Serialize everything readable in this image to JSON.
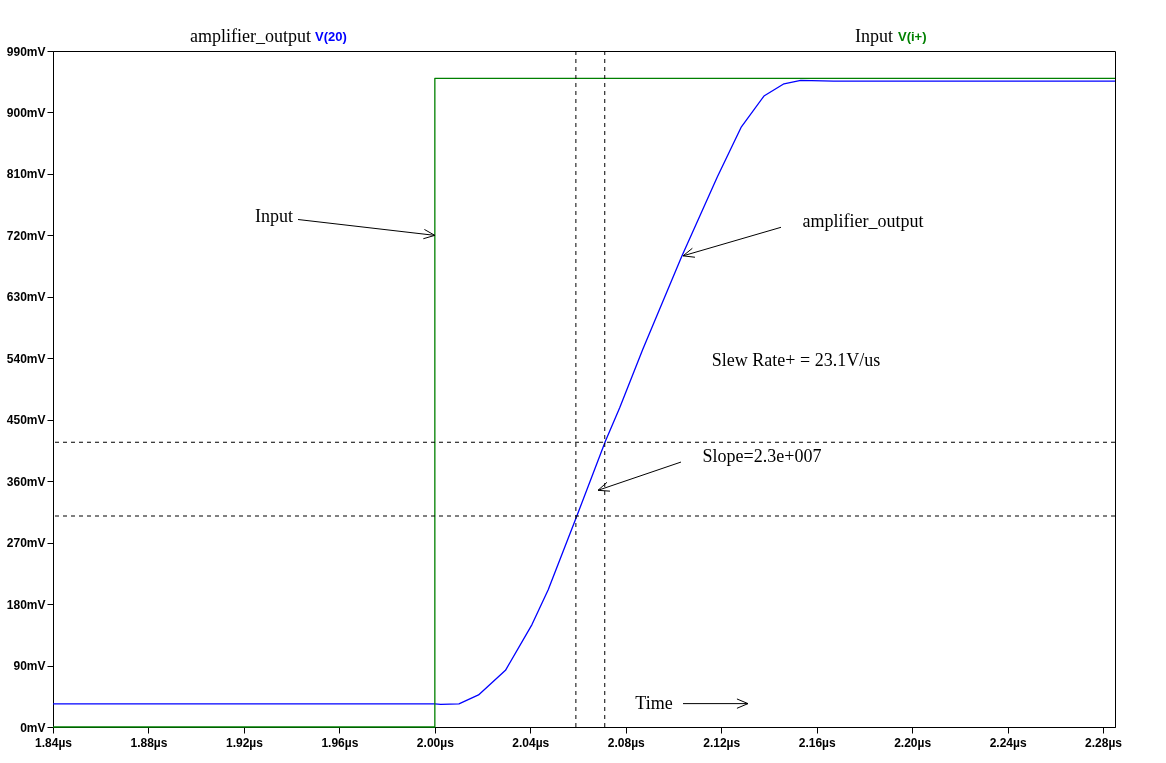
{
  "chart_data": {
    "type": "line",
    "xlim": [
      1.84,
      2.285
    ],
    "ylim": [
      0,
      990
    ],
    "xticks": [
      {
        "value": 1.84,
        "label": "1.84µs"
      },
      {
        "value": 1.88,
        "label": "1.88µs"
      },
      {
        "value": 1.92,
        "label": "1.92µs"
      },
      {
        "value": 1.96,
        "label": "1.96µs"
      },
      {
        "value": 2.0,
        "label": "2.00µs"
      },
      {
        "value": 2.04,
        "label": "2.04µs"
      },
      {
        "value": 2.08,
        "label": "2.08µs"
      },
      {
        "value": 2.12,
        "label": "2.12µs"
      },
      {
        "value": 2.16,
        "label": "2.16µs"
      },
      {
        "value": 2.2,
        "label": "2.20µs"
      },
      {
        "value": 2.24,
        "label": "2.24µs"
      },
      {
        "value": 2.28,
        "label": "2.28µs"
      }
    ],
    "yticks": [
      {
        "value": 0,
        "label": "0mV"
      },
      {
        "value": 90,
        "label": "90mV"
      },
      {
        "value": 180,
        "label": "180mV"
      },
      {
        "value": 270,
        "label": "270mV"
      },
      {
        "value": 360,
        "label": "360mV"
      },
      {
        "value": 450,
        "label": "450mV"
      },
      {
        "value": 540,
        "label": "540mV"
      },
      {
        "value": 630,
        "label": "630mV"
      },
      {
        "value": 720,
        "label": "720mV"
      },
      {
        "value": 810,
        "label": "810mV"
      },
      {
        "value": 900,
        "label": "900mV"
      },
      {
        "value": 990,
        "label": "990mV"
      }
    ],
    "series": [
      {
        "name": "V(20)",
        "color": "#0000ff",
        "x": [
          1.84,
          2.0,
          2.0025,
          2.0101,
          2.0183,
          2.0296,
          2.0407,
          2.0475,
          2.0595,
          2.0715,
          2.0775,
          2.0871,
          2.1033,
          2.1183,
          2.1283,
          2.1379,
          2.1463,
          2.1533,
          2.1671,
          2.285
        ],
        "values": [
          34,
          34,
          33,
          34,
          47,
          83,
          150,
          201,
          309,
          419,
          468,
          553,
          688,
          805,
          878,
          924,
          942,
          947,
          946,
          946
        ]
      },
      {
        "name": "V(i+)",
        "type": "step",
        "color": "#008000",
        "x": [
          1.84,
          2.0,
          2.285
        ],
        "values": [
          0,
          950,
          950
        ]
      }
    ],
    "ref_lines": [
      {
        "axis": "x",
        "value": 2.0591,
        "color": "#000000",
        "line_style": "dashed"
      },
      {
        "axis": "x",
        "value": 2.0712,
        "color": "#000000",
        "line_style": "dashed"
      },
      {
        "axis": "y",
        "value": 417,
        "color": "#000000",
        "line_style": "dashed"
      },
      {
        "axis": "y",
        "value": 309,
        "color": "#000000",
        "line_style": "dashed"
      }
    ],
    "annotations": [
      "amplifier_output",
      "Input",
      {
        "text": "Input",
        "x": 2.0,
        "y": 720
      },
      {
        "text": "amplifier_output",
        "x": 2.104,
        "y": 690
      },
      "Slew Rate+ = 23.1V/us",
      "Slope=2.3e+007",
      "Time"
    ],
    "legend": "top",
    "grid": false,
    "line_style": "solid",
    "marker": "none"
  }
}
